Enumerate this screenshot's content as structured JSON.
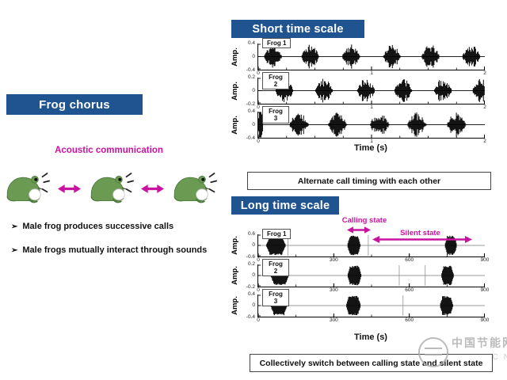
{
  "colors": {
    "banner_blue": "#1f5490",
    "magenta": "#c913a0",
    "frog_green": "#6b9b53",
    "frog_green_dark": "#4c7a3c",
    "waveform": "#000000",
    "watermark_gray": "#ababab"
  },
  "watermark": {
    "line1": "中国节能网",
    "line2": "CN"
  },
  "left": {
    "title": "Frog chorus",
    "subtitle": "Acoustic communication",
    "bullet_glyph": "➢",
    "bullets": [
      "Male frog produces successive calls",
      "Male frogs mutually interact through sounds"
    ],
    "frog_count": 3
  },
  "short_panel": {
    "banner": "Short time scale",
    "caption": "Alternate call timing with each other",
    "xlabel": "Time (s)",
    "ylabel": "Amp.",
    "xmax": 2,
    "xticks": [
      0,
      1,
      2
    ],
    "minor_tick": 0.25,
    "style": "spindle",
    "centerline": "#222222",
    "spike_color": "#000000",
    "plots": [
      {
        "label_lines": [
          "Frog 1"
        ],
        "ylabels": [
          "0.4",
          "0",
          "-0.4"
        ],
        "bursts": [
          {
            "t": 0.13,
            "w": 0.16,
            "a": 1
          },
          {
            "t": 0.46,
            "w": 0.16,
            "a": 1
          },
          {
            "t": 0.82,
            "w": 0.16,
            "a": 1
          },
          {
            "t": 1.18,
            "w": 0.16,
            "a": 1
          },
          {
            "t": 1.52,
            "w": 0.16,
            "a": 1
          },
          {
            "t": 1.88,
            "w": 0.16,
            "a": 1
          }
        ],
        "spikes": []
      },
      {
        "label_lines": [
          "Frog",
          "2"
        ],
        "ylabels": [
          "0.2",
          "0",
          "-0.2"
        ],
        "bursts": [
          {
            "t": 0.23,
            "w": 0.16,
            "a": 1
          },
          {
            "t": 0.58,
            "w": 0.16,
            "a": 1
          },
          {
            "t": 0.95,
            "w": 0.16,
            "a": 1
          },
          {
            "t": 1.28,
            "w": 0.16,
            "a": 1
          },
          {
            "t": 1.63,
            "w": 0.16,
            "a": 1
          },
          {
            "t": 1.97,
            "w": 0.16,
            "a": 1
          }
        ],
        "spikes": []
      },
      {
        "label_lines": [
          "Frog",
          "3"
        ],
        "ylabels": [
          "0.4",
          "0",
          "-0.4"
        ],
        "bursts": [
          {
            "t": 0.02,
            "w": 0.05,
            "a": 1.7
          },
          {
            "t": 0.36,
            "w": 0.17,
            "a": 1
          },
          {
            "t": 0.7,
            "w": 0.17,
            "a": 1
          },
          {
            "t": 1.07,
            "w": 0.17,
            "a": 1
          },
          {
            "t": 1.4,
            "w": 0.17,
            "a": 1
          },
          {
            "t": 1.75,
            "w": 0.17,
            "a": 1
          }
        ],
        "spikes": []
      }
    ]
  },
  "long_panel": {
    "banner": "Long time scale",
    "caption": "Collectively switch between calling state and silent state",
    "xlabel": "Time (s)",
    "ylabel": "Amp.",
    "xmax": 900,
    "xticks": [
      0,
      300,
      600,
      900
    ],
    "minor_tick": 150,
    "style": "block",
    "centerline": "#999999",
    "spike_color": "#888888",
    "annotations": {
      "calling": "Calling state",
      "silent": "Silent state"
    },
    "plots": [
      {
        "label_lines": [
          "Frog 1"
        ],
        "ylabels": [
          "0.6",
          "0",
          "-0.6"
        ],
        "bursts": [
          {
            "t": 70,
            "w": 78,
            "a": 0.95
          },
          {
            "t": 380,
            "w": 52,
            "a": 0.95
          },
          {
            "t": 765,
            "w": 48,
            "a": 0.95
          }
        ],
        "spikes": [
          118,
          437
        ]
      },
      {
        "label_lines": [
          "Frog",
          "2"
        ],
        "ylabels": [
          "0.2",
          "0",
          "-0.2"
        ],
        "bursts": [
          {
            "t": 85,
            "w": 72,
            "a": 0.95
          },
          {
            "t": 382,
            "w": 55,
            "a": 0.95
          },
          {
            "t": 752,
            "w": 50,
            "a": 0.95
          }
        ],
        "spikes": [
          560,
          663
        ]
      },
      {
        "label_lines": [
          "Frog",
          "3"
        ],
        "ylabels": [
          "0.4",
          "0",
          "-0.4"
        ],
        "bursts": [
          {
            "t": 82,
            "w": 66,
            "a": 0.95
          },
          {
            "t": 378,
            "w": 58,
            "a": 0.95
          },
          {
            "t": 748,
            "w": 52,
            "a": 0.95
          }
        ],
        "spikes": [
          575
        ]
      }
    ]
  }
}
